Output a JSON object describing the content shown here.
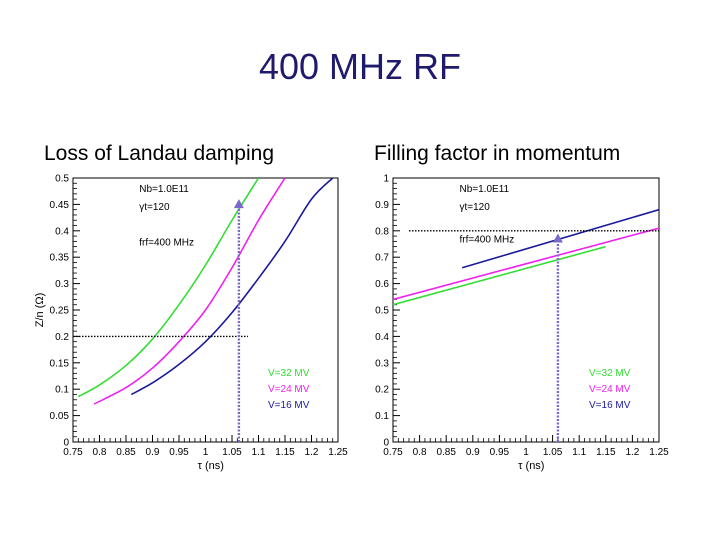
{
  "slide": {
    "title": "400 MHz RF"
  },
  "colors": {
    "title": "#1f1a6b",
    "green": "#33dd33",
    "magenta": "#ee22ee",
    "blue": "#1a1a9a",
    "marker": "#7b68c8"
  },
  "chart_data": [
    {
      "type": "line",
      "title": "Loss of Landau damping",
      "xlabel": "τ (ns)",
      "ylabel": "Z/n (Ω)",
      "xlim": [
        0.75,
        1.25
      ],
      "ylim": [
        0,
        0.5
      ],
      "xticks": [
        "0.75",
        "0.8",
        "0.85",
        "0.9",
        "0.95",
        "1",
        "1.05",
        "1.1",
        "1.15",
        "1.2",
        "1.25"
      ],
      "yticks": [
        "0",
        "0.05",
        "0.1",
        "0.15",
        "0.2",
        "0.25",
        "0.3",
        "0.35",
        "0.4",
        "0.45",
        "0.5"
      ],
      "info_lines": [
        "Nb=1.0E11",
        "γt=120"
      ],
      "info_extra": "frf=400 MHz",
      "series": [
        {
          "name": "V=32 MV",
          "color": "#33dd33",
          "x": [
            0.76,
            0.8,
            0.85,
            0.9,
            0.95,
            1.0,
            1.05,
            1.1
          ],
          "y": [
            0.086,
            0.108,
            0.145,
            0.195,
            0.26,
            0.335,
            0.42,
            0.5
          ]
        },
        {
          "name": "V=24 MV",
          "color": "#ee22ee",
          "x": [
            0.79,
            0.85,
            0.9,
            0.95,
            1.0,
            1.05,
            1.1,
            1.15
          ],
          "y": [
            0.072,
            0.103,
            0.14,
            0.19,
            0.25,
            0.33,
            0.42,
            0.5
          ]
        },
        {
          "name": "V=16 MV",
          "color": "#1a1a9a",
          "x": [
            0.86,
            0.9,
            0.95,
            1.0,
            1.05,
            1.1,
            1.15,
            1.2,
            1.24
          ],
          "y": [
            0.09,
            0.112,
            0.147,
            0.19,
            0.245,
            0.31,
            0.38,
            0.46,
            0.5
          ]
        }
      ],
      "guide_y": 0.2,
      "guide_x": 1.063,
      "guide_arrow_y": 0.46
    },
    {
      "type": "line",
      "title": "Filling factor in momentum",
      "xlabel": "τ (ns)",
      "ylabel": "",
      "xlim": [
        0.75,
        1.25
      ],
      "ylim": [
        0,
        1
      ],
      "xticks": [
        "0.75",
        "0.8",
        "0.85",
        "0.9",
        "0.95",
        "1",
        "1.05",
        "1.1",
        "1.15",
        "1.2",
        "1.25"
      ],
      "yticks": [
        "0",
        "0.1",
        "0.2",
        "0.3",
        "0.4",
        "0.5",
        "0.6",
        "0.7",
        "0.8",
        "0.9",
        "1"
      ],
      "info_lines": [
        "Nb=1.0E11",
        "γt=120"
      ],
      "info_extra": "frf=400 MHz",
      "series": [
        {
          "name": "V=32 MV",
          "color": "#33dd33",
          "x": [
            0.75,
            1.15
          ],
          "y": [
            0.52,
            0.74
          ]
        },
        {
          "name": "V=24 MV",
          "color": "#ee22ee",
          "x": [
            0.75,
            1.25
          ],
          "y": [
            0.54,
            0.81
          ]
        },
        {
          "name": "V=16 MV",
          "color": "#1a1a9a",
          "x": [
            0.88,
            1.25
          ],
          "y": [
            0.66,
            0.88
          ]
        }
      ],
      "guide_y": 0.8,
      "guide_x": 1.06,
      "guide_arrow_y": 0.79
    }
  ]
}
